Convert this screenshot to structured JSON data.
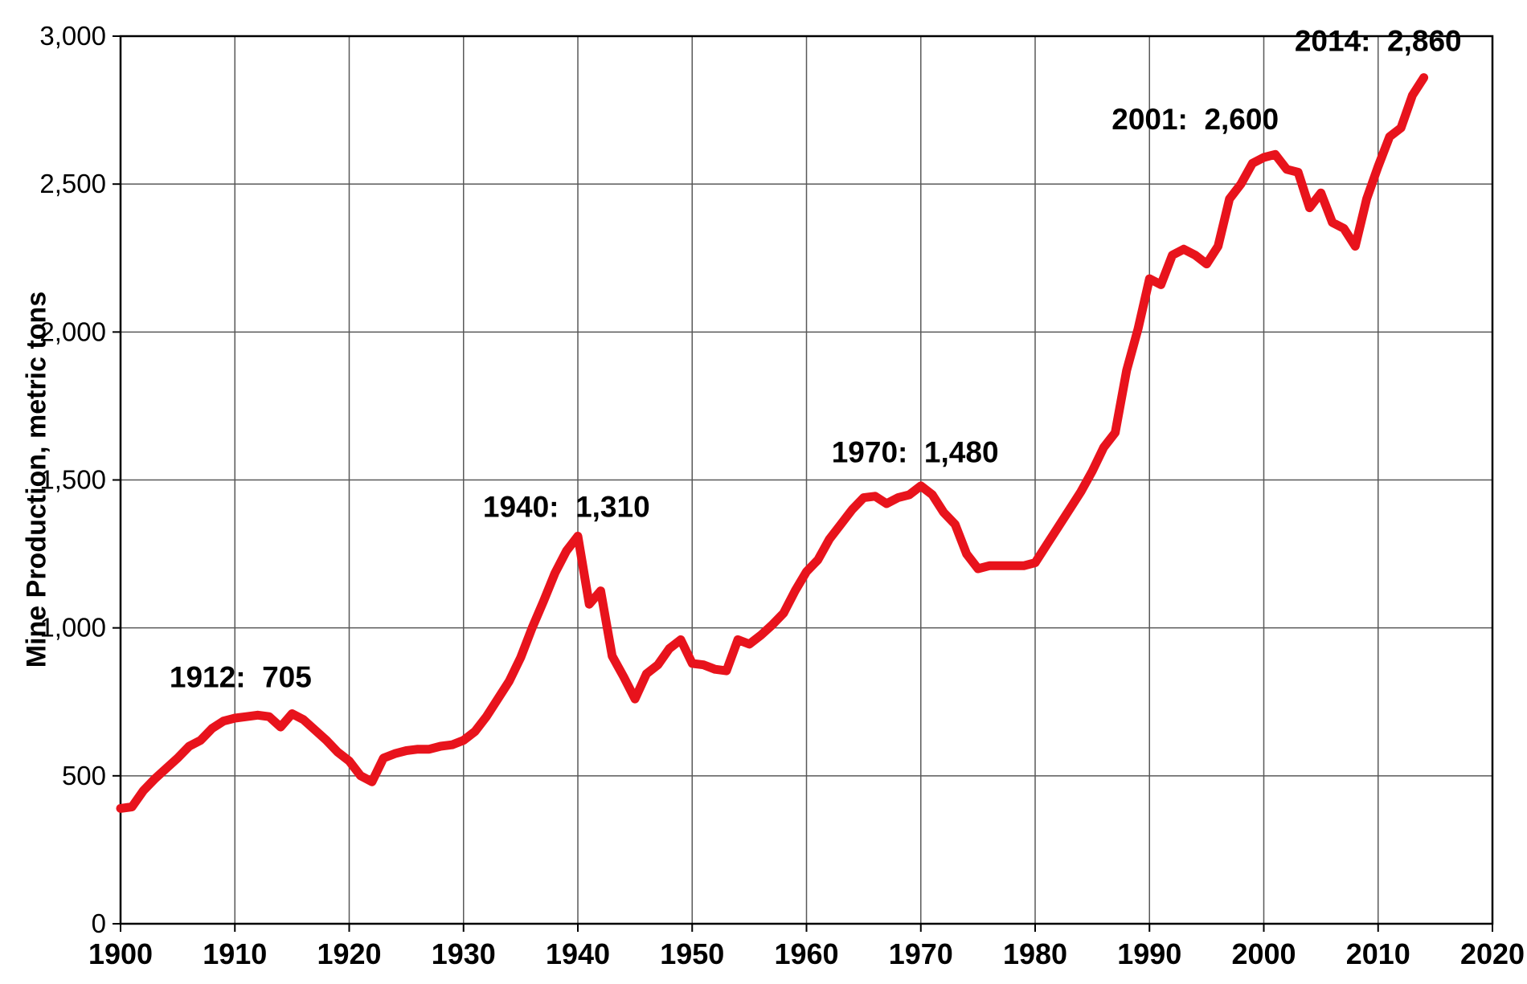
{
  "chart_data": {
    "type": "line",
    "title": "",
    "xlabel": "",
    "ylabel": "Mine Production, metric tons",
    "xlim": [
      1900,
      2020
    ],
    "ylim": [
      0,
      3000
    ],
    "grid": true,
    "legend": "none",
    "line_color": "#e8131c",
    "grid_color": "#595959",
    "axis_color": "#000000",
    "x_ticks": [
      1900,
      1910,
      1920,
      1930,
      1940,
      1950,
      1960,
      1970,
      1980,
      1990,
      2000,
      2010,
      2020
    ],
    "y_ticks": [
      {
        "value": 0,
        "label": "0"
      },
      {
        "value": 500,
        "label": "500"
      },
      {
        "value": 1000,
        "label": "1,000"
      },
      {
        "value": 1500,
        "label": "1,500"
      },
      {
        "value": 2000,
        "label": "2,000"
      },
      {
        "value": 2500,
        "label": "2,500"
      },
      {
        "value": 3000,
        "label": "3,000"
      }
    ],
    "series": [
      {
        "name": "Mine Production",
        "x": [
          1900,
          1901,
          1902,
          1903,
          1904,
          1905,
          1906,
          1907,
          1908,
          1909,
          1910,
          1911,
          1912,
          1913,
          1914,
          1915,
          1916,
          1917,
          1918,
          1919,
          1920,
          1921,
          1922,
          1923,
          1924,
          1925,
          1926,
          1927,
          1928,
          1929,
          1930,
          1931,
          1932,
          1933,
          1934,
          1935,
          1936,
          1937,
          1938,
          1939,
          1940,
          1941,
          1942,
          1943,
          1944,
          1945,
          1946,
          1947,
          1948,
          1949,
          1950,
          1951,
          1952,
          1953,
          1954,
          1955,
          1956,
          1957,
          1958,
          1959,
          1960,
          1961,
          1962,
          1963,
          1964,
          1965,
          1966,
          1967,
          1968,
          1969,
          1970,
          1971,
          1972,
          1973,
          1974,
          1975,
          1976,
          1977,
          1978,
          1979,
          1980,
          1981,
          1982,
          1983,
          1984,
          1985,
          1986,
          1987,
          1988,
          1989,
          1990,
          1991,
          1992,
          1993,
          1994,
          1995,
          1996,
          1997,
          1998,
          1999,
          2000,
          2001,
          2002,
          2003,
          2004,
          2005,
          2006,
          2007,
          2008,
          2009,
          2010,
          2011,
          2012,
          2013,
          2014
        ],
        "values": [
          390,
          395,
          450,
          490,
          525,
          560,
          600,
          620,
          660,
          685,
          695,
          700,
          705,
          700,
          665,
          710,
          690,
          655,
          620,
          580,
          550,
          500,
          480,
          560,
          575,
          585,
          590,
          590,
          600,
          605,
          620,
          650,
          700,
          760,
          820,
          900,
          1000,
          1090,
          1185,
          1260,
          1310,
          1080,
          1125,
          905,
          835,
          760,
          845,
          875,
          930,
          960,
          880,
          875,
          860,
          855,
          960,
          945,
          975,
          1010,
          1050,
          1125,
          1190,
          1230,
          1300,
          1350,
          1400,
          1440,
          1445,
          1420,
          1440,
          1450,
          1480,
          1450,
          1390,
          1350,
          1250,
          1200,
          1210,
          1210,
          1210,
          1210,
          1220,
          1280,
          1340,
          1400,
          1460,
          1530,
          1610,
          1660,
          1870,
          2010,
          2180,
          2160,
          2260,
          2280,
          2260,
          2230,
          2290,
          2450,
          2500,
          2570,
          2590,
          2600,
          2550,
          2540,
          2420,
          2470,
          2370,
          2350,
          2290,
          2450,
          2560,
          2660,
          2690,
          2800,
          2860
        ]
      }
    ],
    "annotations": [
      {
        "text": "1912:  705",
        "year": 1910.5,
        "value": 800
      },
      {
        "text": "1940:  1,310",
        "year": 1939,
        "value": 1375
      },
      {
        "text": "1970:  1,480",
        "year": 1969.5,
        "value": 1560
      },
      {
        "text": "2001:  2,600",
        "year": 1994,
        "value": 2685
      },
      {
        "text": "2014:  2,860",
        "year": 2010,
        "value": 2950
      }
    ]
  }
}
